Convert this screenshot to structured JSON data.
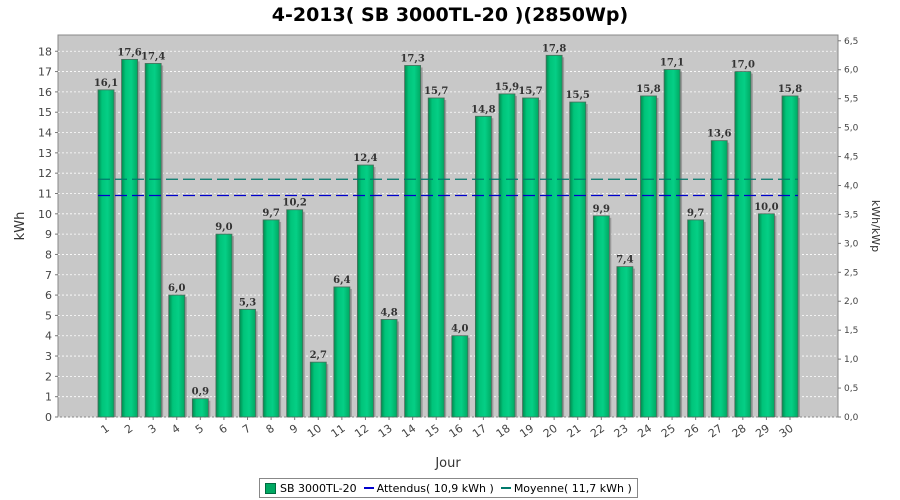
{
  "chart_data": {
    "type": "bar",
    "title": "4-2013( SB 3000TL-20 )(2850Wp)",
    "xlabel": "Jour",
    "ylabel": "kWh",
    "y2label": "kWh/kWp",
    "ylim": [
      0,
      18.8
    ],
    "y2lim": [
      0,
      6.6
    ],
    "yticks": [
      "0",
      "1",
      "2",
      "3",
      "4",
      "5",
      "6",
      "7",
      "8",
      "9",
      "10",
      "11",
      "12",
      "13",
      "14",
      "15",
      "16",
      "17",
      "18"
    ],
    "y2ticks": [
      "0,0",
      "0,5",
      "1,0",
      "1,5",
      "2,0",
      "2,5",
      "3,0",
      "3,5",
      "4,0",
      "4,5",
      "5,0",
      "5,5",
      "6,0",
      "6,5"
    ],
    "categories": [
      "1",
      "2",
      "3",
      "4",
      "5",
      "6",
      "7",
      "8",
      "9",
      "10",
      "11",
      "12",
      "13",
      "14",
      "15",
      "16",
      "17",
      "18",
      "19",
      "20",
      "21",
      "22",
      "23",
      "24",
      "25",
      "26",
      "27",
      "28",
      "29",
      "30"
    ],
    "series": [
      {
        "name": "SB 3000TL-20",
        "values": [
          16.1,
          17.6,
          17.4,
          6.0,
          0.9,
          9.0,
          5.3,
          9.7,
          10.2,
          2.7,
          6.4,
          12.4,
          4.8,
          17.3,
          15.7,
          4.0,
          14.8,
          15.9,
          15.7,
          17.8,
          15.5,
          9.9,
          7.4,
          15.8,
          17.1,
          9.7,
          13.6,
          17.0,
          10.0,
          15.8
        ],
        "labels": [
          "16,1",
          "17,6",
          "17,4",
          "6,0",
          "0,9",
          "9,0",
          "5,3",
          "9,7",
          "10,2",
          "2,7",
          "6,4",
          "12,4",
          "4,8",
          "17,3",
          "15,7",
          "4,0",
          "14,8",
          "15,9",
          "15,7",
          "17,8",
          "15,5",
          "9,9",
          "7,4",
          "15,8",
          "17,1",
          "9,7",
          "13,6",
          "17,0",
          "10,0",
          "15,8"
        ],
        "color": "#00b06a"
      }
    ],
    "reference_lines": [
      {
        "name": "Attendus( 10,9 kWh )",
        "value": 10.9,
        "color": "#0000cc",
        "style": "dashed"
      },
      {
        "name": "Moyenne( 11,7 kWh )",
        "value": 11.7,
        "color": "#00796b",
        "style": "dashed"
      }
    ],
    "legend_position": "bottom",
    "grid": true
  }
}
